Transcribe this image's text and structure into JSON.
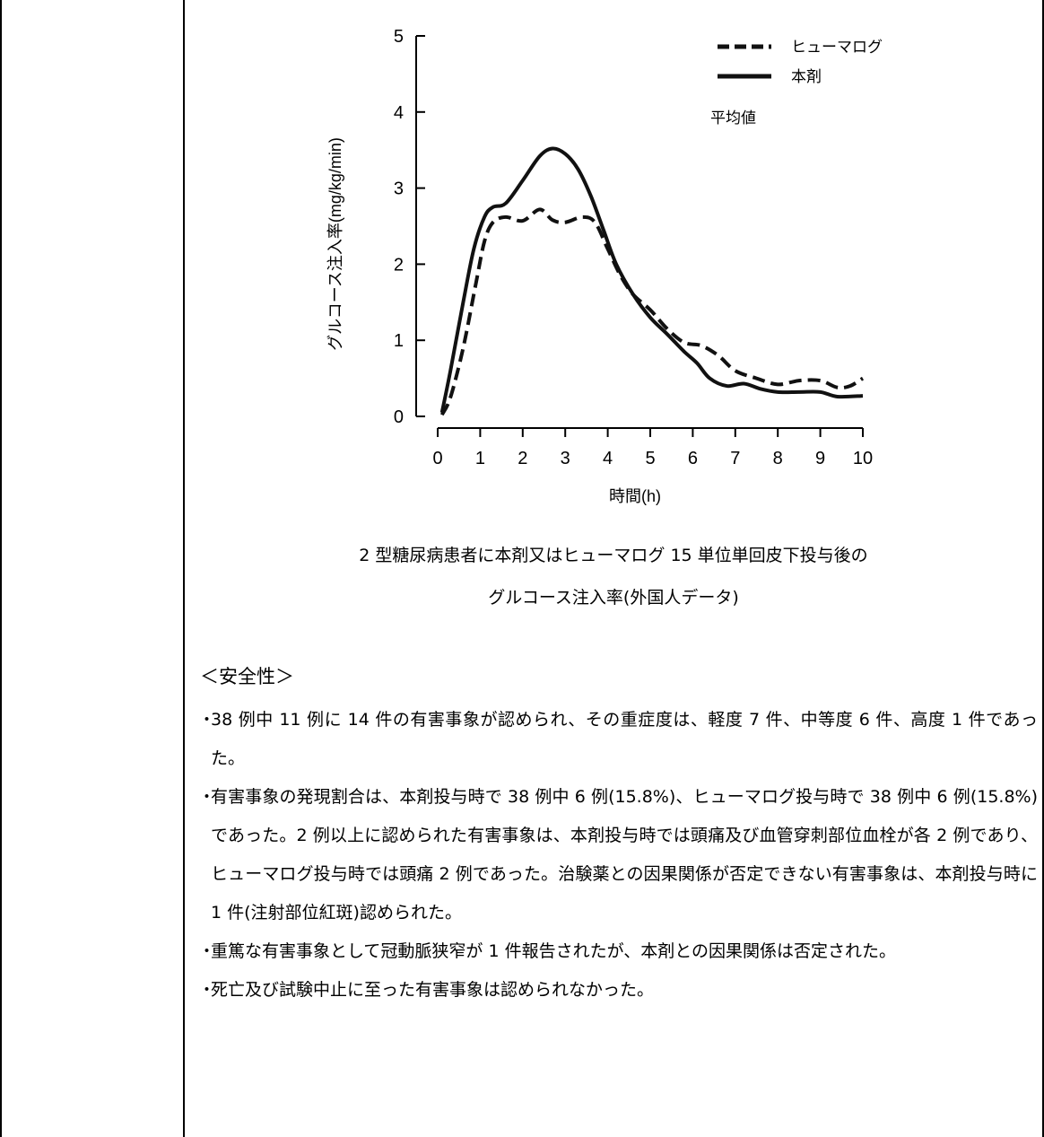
{
  "chart_data": {
    "type": "line",
    "xlabel": "時間(h)",
    "ylabel": "グルコース注入率(mg/kg/min)",
    "xlim": [
      0,
      10
    ],
    "ylim": [
      0,
      5
    ],
    "xticks": [
      "0",
      "1",
      "2",
      "3",
      "4",
      "5",
      "6",
      "7",
      "8",
      "9",
      "10"
    ],
    "yticks": [
      "0",
      "1",
      "2",
      "3",
      "4",
      "5"
    ],
    "legend_position": "top-right",
    "legend_note": "平均値",
    "series": [
      {
        "name": "ヒューマログ",
        "style": "dashed",
        "color": "#111111",
        "points": [
          [
            0.1,
            0.02
          ],
          [
            0.3,
            0.25
          ],
          [
            0.6,
            0.9
          ],
          [
            0.9,
            1.75
          ],
          [
            1.1,
            2.3
          ],
          [
            1.3,
            2.55
          ],
          [
            1.6,
            2.62
          ],
          [
            2.0,
            2.57
          ],
          [
            2.4,
            2.72
          ],
          [
            2.7,
            2.58
          ],
          [
            3.0,
            2.55
          ],
          [
            3.4,
            2.62
          ],
          [
            3.7,
            2.55
          ],
          [
            4.0,
            2.2
          ],
          [
            4.3,
            1.85
          ],
          [
            4.6,
            1.6
          ],
          [
            5.0,
            1.4
          ],
          [
            5.4,
            1.15
          ],
          [
            5.8,
            0.97
          ],
          [
            6.2,
            0.93
          ],
          [
            6.6,
            0.8
          ],
          [
            7.0,
            0.6
          ],
          [
            7.5,
            0.5
          ],
          [
            8.0,
            0.42
          ],
          [
            8.5,
            0.47
          ],
          [
            9.0,
            0.47
          ],
          [
            9.4,
            0.38
          ],
          [
            9.7,
            0.4
          ],
          [
            10.0,
            0.5
          ]
        ]
      },
      {
        "name": "本剤",
        "style": "solid",
        "color": "#111111",
        "points": [
          [
            0.1,
            0.05
          ],
          [
            0.3,
            0.6
          ],
          [
            0.6,
            1.5
          ],
          [
            0.85,
            2.2
          ],
          [
            1.1,
            2.62
          ],
          [
            1.3,
            2.75
          ],
          [
            1.6,
            2.8
          ],
          [
            2.0,
            3.1
          ],
          [
            2.4,
            3.42
          ],
          [
            2.7,
            3.52
          ],
          [
            3.0,
            3.45
          ],
          [
            3.3,
            3.25
          ],
          [
            3.6,
            2.9
          ],
          [
            3.9,
            2.45
          ],
          [
            4.2,
            2.0
          ],
          [
            4.6,
            1.6
          ],
          [
            5.0,
            1.3
          ],
          [
            5.4,
            1.08
          ],
          [
            5.8,
            0.85
          ],
          [
            6.1,
            0.7
          ],
          [
            6.4,
            0.5
          ],
          [
            6.8,
            0.4
          ],
          [
            7.2,
            0.43
          ],
          [
            7.6,
            0.36
          ],
          [
            8.0,
            0.32
          ],
          [
            8.5,
            0.32
          ],
          [
            9.0,
            0.32
          ],
          [
            9.4,
            0.26
          ],
          [
            10.0,
            0.27
          ]
        ]
      }
    ]
  },
  "caption": {
    "line1": "2 型糖尿病患者に本剤又はヒューマログ 15 単位単回皮下投与後の",
    "line2": "グルコース注入率(外国人データ)"
  },
  "safety": {
    "heading": "＜安全性＞",
    "bullet_mark": "・",
    "items": [
      "38 例中 11 例に 14 件の有害事象が認められ、その重症度は、軽度 7 件、中等度 6 件、高度 1 件であった。",
      "有害事象の発現割合は、本剤投与時で 38 例中 6 例(15.8%)、ヒューマログ投与時で 38 例中 6 例(15.8%)であった。2 例以上に認められた有害事象は、本剤投与時では頭痛及び血管穿刺部位血栓が各 2 例であり、ヒューマログ投与時では頭痛 2 例であった。治験薬との因果関係が否定できない有害事象は、本剤投与時に 1 件(注射部位紅斑)認められた。",
      "重篤な有害事象として冠動脈狭窄が 1 件報告されたが、本剤との因果関係は否定された。",
      "死亡及び試験中止に至った有害事象は認められなかった。"
    ]
  }
}
